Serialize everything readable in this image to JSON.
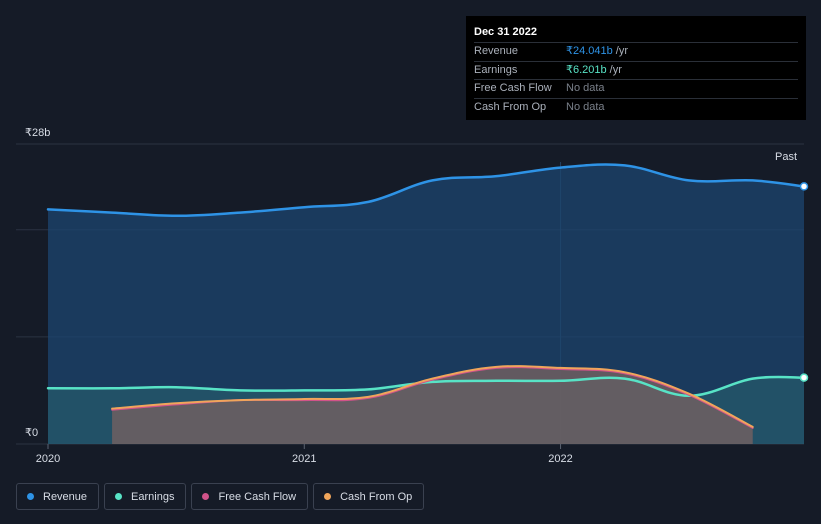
{
  "colors": {
    "revenue": "#2e93e6",
    "earnings": "#58e3c6",
    "free_cash_flow": "#d0538a",
    "cash_from_op": "#f0a55b",
    "background": "#151b27",
    "grid": "#2b3342"
  },
  "tooltip": {
    "date": "Dec 31 2022",
    "rows": [
      {
        "label": "Revenue",
        "value": "₹24.041b",
        "unit": "/yr"
      },
      {
        "label": "Earnings",
        "value": "₹6.201b",
        "unit": "/yr"
      },
      {
        "label": "Free Cash Flow",
        "value": "No data",
        "unit": ""
      },
      {
        "label": "Cash From Op",
        "value": "No data",
        "unit": ""
      }
    ]
  },
  "legend": [
    {
      "label": "Revenue",
      "color": "#2e93e6"
    },
    {
      "label": "Earnings",
      "color": "#58e3c6"
    },
    {
      "label": "Free Cash Flow",
      "color": "#d0538a"
    },
    {
      "label": "Cash From Op",
      "color": "#f0a55b"
    }
  ],
  "chart_data": {
    "type": "area",
    "y_top_label": "₹28b",
    "y_bottom_label": "₹0",
    "past_label": "Past",
    "ylim": [
      0,
      28
    ],
    "xlim": [
      2019.95,
      2022.95
    ],
    "x_ticks": [
      {
        "value": 2020.0,
        "label": "2020"
      },
      {
        "value": 2021.0,
        "label": "2021"
      },
      {
        "value": 2022.0,
        "label": "2022"
      }
    ],
    "y_grid": [
      0,
      10,
      20,
      28
    ],
    "series": [
      {
        "name": "Revenue",
        "x": [
          2020.0,
          2020.25,
          2020.5,
          2020.75,
          2021.0,
          2021.25,
          2021.5,
          2021.75,
          2022.0,
          2022.25,
          2022.5,
          2022.75,
          2022.95
        ],
        "values": [
          21.9,
          21.6,
          21.3,
          21.6,
          22.1,
          22.6,
          24.6,
          25.0,
          25.8,
          26.0,
          24.6,
          24.6,
          24.04
        ]
      },
      {
        "name": "Earnings",
        "x": [
          2020.0,
          2020.25,
          2020.5,
          2020.75,
          2021.0,
          2021.25,
          2021.5,
          2021.75,
          2022.0,
          2022.25,
          2022.5,
          2022.75,
          2022.95
        ],
        "values": [
          5.2,
          5.2,
          5.3,
          5.0,
          5.0,
          5.1,
          5.8,
          5.9,
          5.9,
          6.1,
          4.5,
          6.1,
          6.2
        ]
      },
      {
        "name": "Free Cash Flow",
        "x": [
          2020.25,
          2020.5,
          2020.75,
          2021.0,
          2021.25,
          2021.5,
          2021.75,
          2022.0,
          2022.25,
          2022.5,
          2022.75
        ],
        "values": [
          3.2,
          3.7,
          4.1,
          4.1,
          4.3,
          6.0,
          7.1,
          7.0,
          6.6,
          4.6,
          1.5
        ]
      },
      {
        "name": "Cash From Op",
        "x": [
          2020.25,
          2020.5,
          2020.75,
          2021.0,
          2021.25,
          2021.5,
          2021.75,
          2022.0,
          2022.25,
          2022.5,
          2022.75
        ],
        "values": [
          3.3,
          3.8,
          4.1,
          4.2,
          4.4,
          6.1,
          7.2,
          7.1,
          6.7,
          4.7,
          1.6
        ]
      }
    ]
  }
}
